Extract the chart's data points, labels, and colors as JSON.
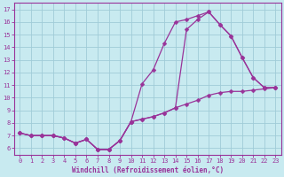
{
  "xlabel": "Windchill (Refroidissement éolien,°C)",
  "bg_color": "#c8eaf0",
  "line_color": "#993399",
  "grid_color": "#a0ccd8",
  "spine_color": "#993399",
  "xlim": [
    -0.5,
    23.5
  ],
  "ylim": [
    5.5,
    17.5
  ],
  "xticks": [
    0,
    1,
    2,
    3,
    4,
    5,
    6,
    7,
    8,
    9,
    10,
    11,
    12,
    13,
    14,
    15,
    16,
    17,
    18,
    19,
    20,
    21,
    22,
    23
  ],
  "yticks": [
    6,
    7,
    8,
    9,
    10,
    11,
    12,
    13,
    14,
    15,
    16,
    17
  ],
  "line1_x": [
    0,
    1,
    2,
    3,
    4,
    5,
    6,
    7,
    8,
    9,
    10,
    11,
    12,
    13,
    14,
    15,
    16,
    17,
    18,
    19,
    20,
    21,
    22,
    23
  ],
  "line1_y": [
    7.2,
    7.0,
    7.0,
    7.0,
    6.8,
    6.4,
    6.7,
    5.9,
    5.9,
    6.6,
    8.1,
    8.3,
    8.5,
    8.8,
    9.2,
    9.5,
    9.8,
    10.2,
    10.4,
    10.5,
    10.5,
    10.6,
    10.7,
    10.8
  ],
  "line2_x": [
    0,
    1,
    2,
    3,
    4,
    5,
    6,
    7,
    8,
    9,
    10,
    11,
    12,
    13,
    14,
    15,
    16,
    17,
    18,
    19,
    20,
    21,
    22,
    23
  ],
  "line2_y": [
    7.2,
    7.0,
    7.0,
    7.0,
    6.8,
    6.4,
    6.7,
    5.9,
    5.9,
    6.6,
    8.1,
    11.1,
    12.2,
    14.3,
    16.0,
    16.2,
    16.5,
    16.8,
    15.8,
    14.9,
    13.2,
    11.6,
    10.8,
    10.8
  ],
  "line3_x": [
    0,
    1,
    2,
    3,
    4,
    5,
    6,
    7,
    8,
    9,
    10,
    11,
    12,
    13,
    14,
    15,
    16,
    17,
    18,
    19,
    20,
    21,
    22,
    23
  ],
  "line3_y": [
    7.2,
    7.0,
    7.0,
    7.0,
    6.8,
    6.4,
    6.7,
    5.9,
    5.9,
    6.6,
    8.1,
    8.3,
    8.5,
    8.8,
    9.2,
    15.4,
    16.2,
    16.8,
    15.8,
    14.9,
    13.2,
    11.6,
    10.8,
    10.8
  ],
  "xlabel_fontsize": 5.5,
  "tick_fontsize": 5,
  "lw": 0.9,
  "ms": 2.5
}
